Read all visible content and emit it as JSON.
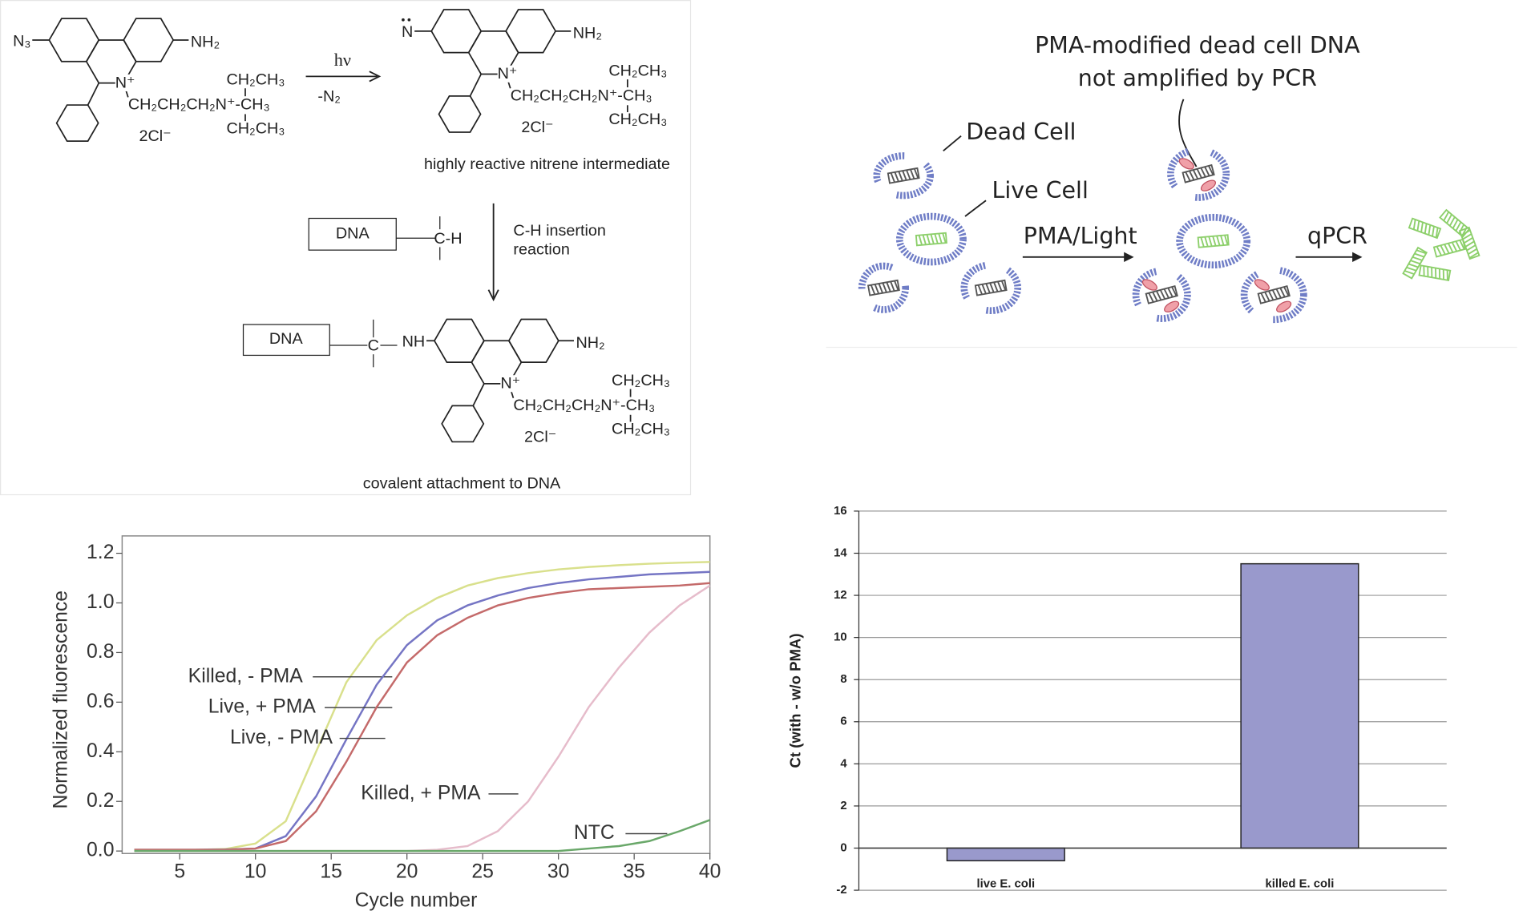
{
  "chemistry": {
    "azide": "N₃",
    "amine": "NH₂",
    "iminium": "N⁺",
    "chain": "CH₂CH₂CH₂N⁺-CH₃",
    "ethyl": "CH₂CH₃",
    "counterion": "2Cl⁻",
    "light": "hν",
    "loss": "-N₂",
    "nitrene_n": "N",
    "nitrene_caption": "highly reactive nitrene intermediate",
    "dna": "DNA",
    "ch": "C-H",
    "insertion_1": "C-H insertion",
    "insertion_2": "reaction",
    "carbon": "C",
    "nh": "NH",
    "product_caption": "covalent attachment to DNA"
  },
  "cell_diagram": {
    "caption_1": "PMA-modified dead cell DNA",
    "caption_2": "not amplified by PCR",
    "dead_cell": "Dead Cell",
    "live_cell": "Live Cell",
    "treatment": "PMA/Light",
    "assay": "qPCR"
  },
  "chart_data": [
    {
      "type": "line",
      "x_label": "Cycle number",
      "y_label": "Normalized fluorescence",
      "x": [
        2,
        4,
        6,
        8,
        10,
        12,
        14,
        16,
        18,
        20,
        22,
        24,
        26,
        28,
        30,
        32,
        34,
        36,
        38,
        40
      ],
      "xlim": [
        1.2,
        40
      ],
      "xticks": [
        5,
        10,
        15,
        20,
        25,
        30,
        35,
        40
      ],
      "ylim": [
        -0.01,
        1.27
      ],
      "yticks": [
        {
          "value": 0,
          "label": "0.0"
        },
        0.2,
        0.4,
        0.6,
        0.8,
        {
          "value": 1,
          "label": "1.0"
        },
        1.2
      ],
      "series": [
        {
          "name": "Killed, - PMA",
          "color": "#d9e08c",
          "values": [
            0.005,
            0.005,
            0.005,
            0.008,
            0.03,
            0.12,
            0.4,
            0.68,
            0.85,
            0.95,
            1.02,
            1.07,
            1.1,
            1.12,
            1.135,
            1.145,
            1.152,
            1.158,
            1.162,
            1.165
          ]
        },
        {
          "name": "Live, + PMA",
          "color": "#7575c4",
          "values": [
            0.005,
            0.005,
            0.005,
            0.006,
            0.01,
            0.06,
            0.22,
            0.45,
            0.67,
            0.83,
            0.93,
            0.99,
            1.03,
            1.06,
            1.08,
            1.095,
            1.105,
            1.115,
            1.12,
            1.125
          ]
        },
        {
          "name": "Live, - PMA",
          "color": "#c46a6a",
          "values": [
            0.005,
            0.005,
            0.005,
            0.005,
            0.01,
            0.04,
            0.16,
            0.36,
            0.58,
            0.76,
            0.87,
            0.94,
            0.99,
            1.02,
            1.04,
            1.055,
            1.06,
            1.065,
            1.07,
            1.08
          ]
        },
        {
          "name": "Killed, + PMA",
          "color": "#e6bccb",
          "values": [
            0,
            0,
            0,
            0,
            0,
            0,
            0,
            0,
            0,
            0,
            0.005,
            0.02,
            0.08,
            0.2,
            0.38,
            0.58,
            0.74,
            0.88,
            0.99,
            1.07
          ]
        },
        {
          "name": "NTC",
          "color": "#6aa86a",
          "values": [
            0,
            0,
            0,
            0,
            0,
            0,
            0,
            0,
            0,
            0,
            0,
            0,
            0,
            0,
            0,
            0.01,
            0.02,
            0.04,
            0.08,
            0.125
          ]
        }
      ]
    },
    {
      "type": "bar",
      "y_label": "Ct (with - w/o PMA)",
      "categories": [
        "live E. coli",
        "killed E. coli"
      ],
      "values": [
        -0.6,
        13.5
      ],
      "color": "#9999cc",
      "ylim": [
        -2,
        16
      ],
      "yticks": [
        -2,
        0,
        2,
        4,
        6,
        8,
        10,
        12,
        14,
        16
      ],
      "grid": true
    }
  ]
}
